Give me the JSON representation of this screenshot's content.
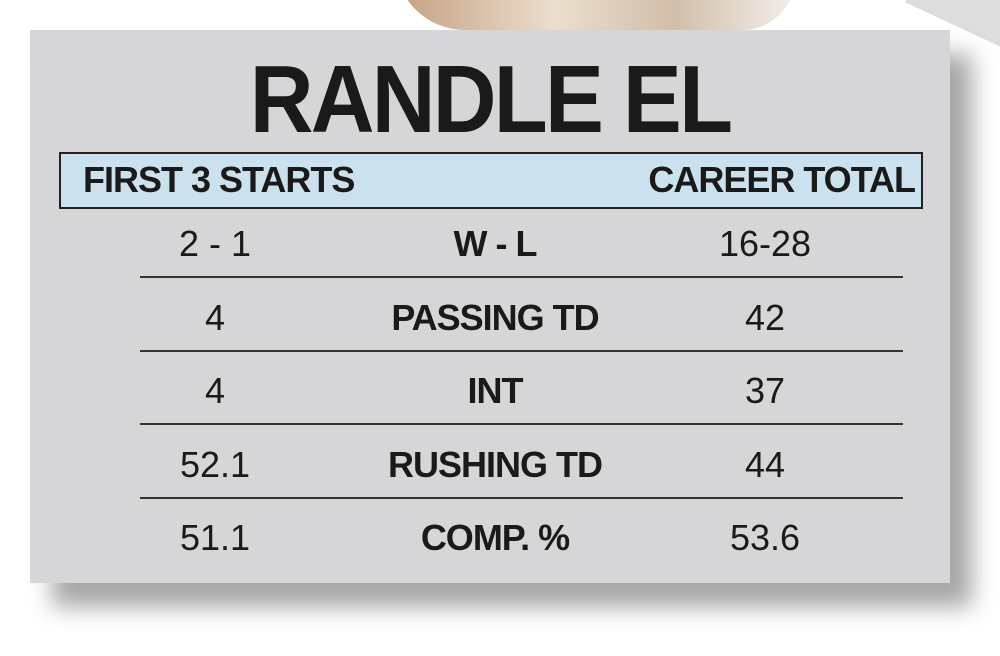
{
  "title": "RANDLE EL",
  "header": [
    "FIRST 3 STARTS",
    "CAREER TOTAL"
  ],
  "table": {
    "rows": [
      [
        "2 - 1",
        "W - L",
        "16-28"
      ],
      [
        "4",
        "PASSING TD",
        "42"
      ],
      [
        "4",
        "INT",
        "37"
      ],
      [
        "52.1",
        "RUSHING TD",
        "44"
      ],
      [
        "51.1",
        "COMP. %",
        "53.6"
      ]
    ]
  }
}
